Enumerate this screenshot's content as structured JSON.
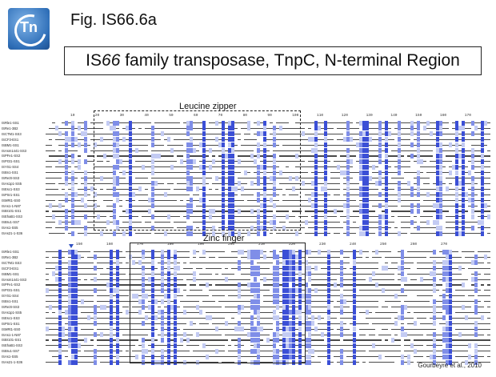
{
  "header": {
    "fig_label": "Fig. IS66.6a",
    "logo_text": "Tn",
    "title_pre": "IS",
    "title_italic": "66",
    "title_post": " family transposase, TnpC, N-terminal Region"
  },
  "sections": {
    "leucine_zipper": "Leucine zipper",
    "zinc_finger": "Zinc finger"
  },
  "rulers": {
    "top": [
      "10",
      "20",
      "30",
      "40",
      "50",
      "60",
      "70",
      "80",
      "90",
      "100",
      "110",
      "120",
      "130",
      "140",
      "150",
      "160",
      "170"
    ],
    "bottom": [
      "150",
      "160",
      "170",
      "180",
      "190",
      "200",
      "210",
      "220",
      "230",
      "240",
      "250",
      "260",
      "270"
    ]
  },
  "labels": [
    "ISRle1-SS1",
    "ISRe1-3B2",
    "ISCTM1-SS3",
    "ISCF3-ES1",
    "ISBM1-SS1",
    "ISAsm1441-SS3",
    "ISPFe1-SS2",
    "ISPGt1-SS1",
    "ISYS1-SS4",
    "ISBn1-SS1",
    "ISRe3t-SS3",
    "ISAs1p1-SS5",
    "ISEsc1-SS3",
    "ISPSr1-SS1",
    "ISMRt1-SS0",
    "ISAs1-1-N87",
    "ISBr101-SS1",
    "ISEhaB1-SS3",
    "ISBru1-SS7",
    "ISAs1-SS5",
    "ISAs21-1-S36"
  ],
  "credit": "Gourbeyre et al., 2010",
  "colors": {
    "conserved_dark": "#3b4fd6",
    "conserved_mid": "#7f8ee8",
    "conserved_light": "#c3cbf3",
    "residue_text": "#4a4a4a",
    "marker": "#2f4fc0"
  }
}
